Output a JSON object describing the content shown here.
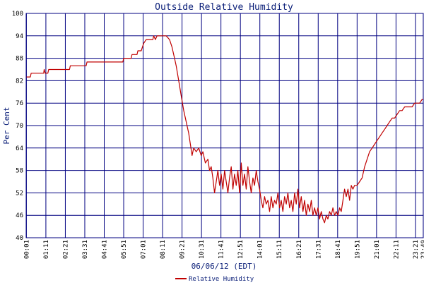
{
  "chart_data": {
    "type": "line",
    "title": "Outside Relative Humidity",
    "xlabel": "06/06/12 (EDT)",
    "ylabel": "Per Cent",
    "ylim": [
      40,
      100
    ],
    "yticks": [
      "40",
      "46",
      "52",
      "58",
      "64",
      "70",
      "76",
      "82",
      "88",
      "94",
      "100"
    ],
    "xticks": [
      "00:01",
      "01:11",
      "02:21",
      "03:31",
      "04:41",
      "05:51",
      "07:01",
      "08:11",
      "09:21",
      "10:31",
      "11:41",
      "12:51",
      "14:01",
      "15:11",
      "16:21",
      "17:31",
      "18:41",
      "19:51",
      "21:01",
      "22:11",
      "23:21",
      "23:49"
    ],
    "grid": true,
    "legend_position": "bottom",
    "colors": {
      "line": "#c00000",
      "grid": "#000080",
      "text": "#0a1e78",
      "background": "#ffffff"
    },
    "series": [
      {
        "name": "Relative Humidity",
        "x_unit": "hours since 00:00",
        "points": [
          [
            0.02,
            83
          ],
          [
            0.25,
            83
          ],
          [
            0.3,
            84
          ],
          [
            1.05,
            84
          ],
          [
            1.08,
            85
          ],
          [
            1.15,
            84
          ],
          [
            1.3,
            84
          ],
          [
            1.35,
            85
          ],
          [
            2.6,
            85
          ],
          [
            2.65,
            86
          ],
          [
            3.6,
            86
          ],
          [
            3.65,
            87
          ],
          [
            5.8,
            87
          ],
          [
            5.85,
            88
          ],
          [
            6.3,
            88
          ],
          [
            6.35,
            89
          ],
          [
            6.65,
            89
          ],
          [
            6.7,
            90
          ],
          [
            6.9,
            90
          ],
          [
            7.05,
            92
          ],
          [
            7.2,
            93
          ],
          [
            7.6,
            93
          ],
          [
            7.65,
            94
          ],
          [
            7.75,
            93
          ],
          [
            7.85,
            94
          ],
          [
            8.4,
            94
          ],
          [
            8.6,
            93
          ],
          [
            8.75,
            91
          ],
          [
            8.9,
            88
          ],
          [
            9.0,
            86
          ],
          [
            9.15,
            82
          ],
          [
            9.3,
            78
          ],
          [
            9.45,
            74
          ],
          [
            9.6,
            71
          ],
          [
            9.75,
            68
          ],
          [
            9.85,
            65
          ],
          [
            9.95,
            62
          ],
          [
            10.05,
            64
          ],
          [
            10.2,
            63
          ],
          [
            10.35,
            64
          ],
          [
            10.5,
            62
          ],
          [
            10.6,
            63
          ],
          [
            10.75,
            60
          ],
          [
            10.9,
            61
          ],
          [
            11.0,
            58
          ],
          [
            11.1,
            59
          ],
          [
            11.2,
            56
          ],
          [
            11.3,
            52
          ],
          [
            11.4,
            55
          ],
          [
            11.5,
            58
          ],
          [
            11.6,
            54
          ],
          [
            11.7,
            57
          ],
          [
            11.8,
            53
          ],
          [
            11.9,
            58
          ],
          [
            12.0,
            55
          ],
          [
            12.1,
            52
          ],
          [
            12.2,
            56
          ],
          [
            12.3,
            59
          ],
          [
            12.4,
            53
          ],
          [
            12.5,
            57
          ],
          [
            12.6,
            54
          ],
          [
            12.7,
            58
          ],
          [
            12.8,
            52
          ],
          [
            12.9,
            60
          ],
          [
            13.0,
            54
          ],
          [
            13.1,
            57
          ],
          [
            13.2,
            53
          ],
          [
            13.3,
            59
          ],
          [
            13.4,
            55
          ],
          [
            13.5,
            52
          ],
          [
            13.6,
            56
          ],
          [
            13.7,
            54
          ],
          [
            13.8,
            58
          ],
          [
            13.9,
            55
          ],
          [
            14.0,
            53
          ],
          [
            14.1,
            50
          ],
          [
            14.2,
            48
          ],
          [
            14.3,
            51
          ],
          [
            14.4,
            49
          ],
          [
            14.5,
            50
          ],
          [
            14.6,
            47
          ],
          [
            14.7,
            51
          ],
          [
            14.8,
            48
          ],
          [
            14.9,
            50
          ],
          [
            15.0,
            49
          ],
          [
            15.1,
            52
          ],
          [
            15.2,
            48
          ],
          [
            15.3,
            50
          ],
          [
            15.4,
            47
          ],
          [
            15.5,
            51
          ],
          [
            15.6,
            49
          ],
          [
            15.7,
            52
          ],
          [
            15.8,
            48
          ],
          [
            15.9,
            50
          ],
          [
            16.0,
            47
          ],
          [
            16.1,
            52
          ],
          [
            16.2,
            49
          ],
          [
            16.3,
            53
          ],
          [
            16.4,
            48
          ],
          [
            16.5,
            51
          ],
          [
            16.6,
            47
          ],
          [
            16.7,
            50
          ],
          [
            16.8,
            46
          ],
          [
            16.9,
            49
          ],
          [
            17.0,
            47
          ],
          [
            17.1,
            50
          ],
          [
            17.2,
            46
          ],
          [
            17.3,
            48
          ],
          [
            17.4,
            46
          ],
          [
            17.5,
            48
          ],
          [
            17.6,
            45
          ],
          [
            17.7,
            47
          ],
          [
            17.8,
            45
          ],
          [
            17.9,
            44
          ],
          [
            18.0,
            46
          ],
          [
            18.1,
            45
          ],
          [
            18.2,
            47
          ],
          [
            18.3,
            46
          ],
          [
            18.4,
            48
          ],
          [
            18.5,
            46
          ],
          [
            18.6,
            47
          ],
          [
            18.7,
            46
          ],
          [
            18.8,
            48
          ],
          [
            18.9,
            47
          ],
          [
            19.0,
            50
          ],
          [
            19.1,
            53
          ],
          [
            19.2,
            51
          ],
          [
            19.3,
            53
          ],
          [
            19.4,
            50
          ],
          [
            19.5,
            54
          ],
          [
            19.6,
            53
          ],
          [
            19.7,
            54
          ],
          [
            19.85,
            54
          ],
          [
            20.0,
            55
          ],
          [
            20.15,
            56
          ],
          [
            20.3,
            59
          ],
          [
            20.45,
            61
          ],
          [
            20.6,
            63
          ],
          [
            20.75,
            64
          ],
          [
            20.9,
            65
          ],
          [
            21.05,
            66
          ],
          [
            21.2,
            67
          ],
          [
            21.35,
            68
          ],
          [
            21.5,
            69
          ],
          [
            21.65,
            70
          ],
          [
            21.8,
            71
          ],
          [
            21.95,
            72
          ],
          [
            22.1,
            72
          ],
          [
            22.25,
            73
          ],
          [
            22.4,
            74
          ],
          [
            22.55,
            74
          ],
          [
            22.7,
            75
          ],
          [
            22.85,
            75
          ],
          [
            23.0,
            75
          ],
          [
            23.15,
            75
          ],
          [
            23.3,
            76
          ],
          [
            23.45,
            76
          ],
          [
            23.6,
            76
          ],
          [
            23.75,
            77
          ],
          [
            23.82,
            77
          ]
        ]
      }
    ]
  }
}
